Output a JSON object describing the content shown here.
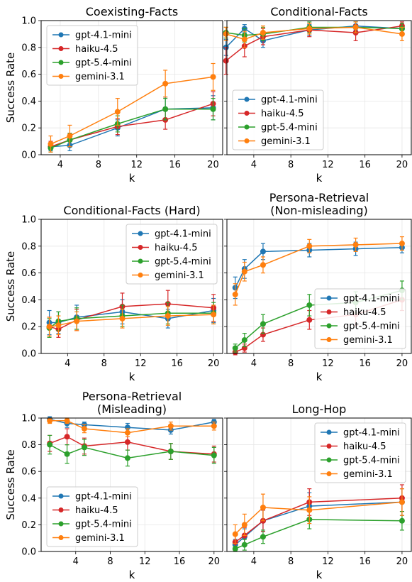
{
  "colors": {
    "gpt-4.1-mini": "#1f77b4",
    "haiku-4.5": "#d62728",
    "gpt-5.4-mini": "#2ca02c",
    "gemini-3.1": "#ff7f0e"
  },
  "chart_data": [
    {
      "type": "line",
      "title": [
        "Coexisting-Facts"
      ],
      "xlabel": "k",
      "ylabel": "Success Rate",
      "xlim": [
        2,
        21
      ],
      "ylim": [
        0,
        1
      ],
      "xticks": [
        4,
        8,
        12,
        16,
        20
      ],
      "yticks": [
        0.0,
        0.2,
        0.4,
        0.6,
        0.8,
        1.0
      ],
      "grid": true,
      "legend": "upper-left",
      "x": [
        3,
        5,
        10,
        15,
        20
      ],
      "series": [
        {
          "name": "gpt-4.1-mini",
          "values": [
            0.06,
            0.07,
            0.2,
            0.34,
            0.35
          ],
          "err": [
            0.03,
            0.04,
            0.06,
            0.09,
            0.09
          ]
        },
        {
          "name": "haiku-4.5",
          "values": [
            0.06,
            0.11,
            0.21,
            0.26,
            0.38
          ],
          "err": [
            0.04,
            0.05,
            0.06,
            0.07,
            0.09
          ]
        },
        {
          "name": "gpt-5.4-mini",
          "values": [
            0.05,
            0.11,
            0.23,
            0.34,
            0.34
          ],
          "err": [
            0.03,
            0.05,
            0.06,
            0.08,
            0.08
          ]
        },
        {
          "name": "gemini-3.1",
          "values": [
            0.08,
            0.14,
            0.32,
            0.53,
            0.58
          ],
          "err": [
            0.06,
            0.08,
            0.1,
            0.1,
            0.1
          ]
        }
      ]
    },
    {
      "type": "line",
      "title": [
        "Conditional-Facts"
      ],
      "xlabel": "k",
      "ylabel": "",
      "xlim": [
        1.1,
        21
      ],
      "ylim": [
        0,
        1
      ],
      "xticks": [
        4,
        8,
        12,
        16,
        20
      ],
      "yticks": [
        0.0,
        0.2,
        0.4,
        0.6,
        0.8,
        1.0
      ],
      "grid": true,
      "legend": "lower-left",
      "x": [
        1,
        3,
        5,
        10,
        15,
        20
      ],
      "series": [
        {
          "name": "gpt-4.1-mini",
          "values": [
            0.8,
            0.94,
            0.85,
            0.93,
            0.96,
            0.94
          ],
          "err": [
            0.06,
            0.03,
            0.05,
            0.04,
            0.03,
            0.03
          ]
        },
        {
          "name": "haiku-4.5",
          "values": [
            0.7,
            0.81,
            0.88,
            0.93,
            0.91,
            0.96
          ],
          "err": [
            0.1,
            0.08,
            0.06,
            0.05,
            0.06,
            0.03
          ]
        },
        {
          "name": "gpt-5.4-mini",
          "values": [
            0.91,
            0.89,
            0.9,
            0.95,
            0.95,
            0.94
          ],
          "err": [
            0.04,
            0.05,
            0.05,
            0.04,
            0.04,
            0.04
          ]
        },
        {
          "name": "gemini-3.1",
          "values": [
            0.9,
            0.86,
            0.91,
            0.94,
            0.95,
            0.9
          ],
          "err": [
            0.05,
            0.06,
            0.05,
            0.04,
            0.04,
            0.05
          ]
        }
      ]
    },
    {
      "type": "line",
      "title": [
        "Conditional-Facts (Hard)"
      ],
      "xlabel": "k",
      "ylabel": "Success Rate",
      "xlim": [
        1.1,
        21
      ],
      "ylim": [
        0,
        1
      ],
      "xticks": [
        4,
        8,
        12,
        16,
        20
      ],
      "yticks": [
        0.0,
        0.2,
        0.4,
        0.6,
        0.8,
        1.0
      ],
      "grid": true,
      "legend": "upper-right",
      "x": [
        2,
        3,
        5,
        10,
        15,
        20
      ],
      "series": [
        {
          "name": "gpt-4.1-mini",
          "values": [
            0.23,
            0.23,
            0.27,
            0.31,
            0.26,
            0.32
          ],
          "err": [
            0.09,
            0.08,
            0.09,
            0.09,
            0.07,
            0.09
          ]
        },
        {
          "name": "haiku-4.5",
          "values": [
            0.2,
            0.18,
            0.25,
            0.35,
            0.37,
            0.34
          ],
          "err": [
            0.07,
            0.06,
            0.08,
            0.1,
            0.1,
            0.1
          ]
        },
        {
          "name": "gpt-5.4-mini",
          "values": [
            0.19,
            0.24,
            0.26,
            0.28,
            0.3,
            0.3
          ],
          "err": [
            0.07,
            0.07,
            0.08,
            0.08,
            0.08,
            0.08
          ]
        },
        {
          "name": "gemini-3.1",
          "values": [
            0.2,
            0.21,
            0.24,
            0.26,
            0.28,
            0.29
          ],
          "err": [
            0.07,
            0.07,
            0.07,
            0.07,
            0.07,
            0.07
          ]
        }
      ]
    },
    {
      "type": "line",
      "title": [
        "Persona-Retrieval",
        "(Non-misleading)"
      ],
      "xlabel": "k",
      "ylabel": "",
      "xlim": [
        1.1,
        21
      ],
      "ylim": [
        0,
        1
      ],
      "xticks": [
        4,
        8,
        12,
        16,
        20
      ],
      "yticks": [
        0.0,
        0.2,
        0.4,
        0.6,
        0.8,
        1.0
      ],
      "grid": true,
      "legend": "lower-right",
      "x": [
        2,
        3,
        5,
        10,
        15,
        20
      ],
      "series": [
        {
          "name": "gpt-4.1-mini",
          "values": [
            0.49,
            0.63,
            0.76,
            0.77,
            0.78,
            0.79
          ],
          "err": [
            0.08,
            0.07,
            0.06,
            0.05,
            0.05,
            0.04
          ]
        },
        {
          "name": "haiku-4.5",
          "values": [
            0.01,
            0.04,
            0.14,
            0.25,
            0.29,
            0.4
          ],
          "err": [
            0.02,
            0.03,
            0.05,
            0.07,
            0.08,
            0.08
          ]
        },
        {
          "name": "gpt-5.4-mini",
          "values": [
            0.04,
            0.1,
            0.22,
            0.36,
            0.38,
            0.47
          ],
          "err": [
            0.03,
            0.05,
            0.07,
            0.08,
            0.08,
            0.07
          ]
        },
        {
          "name": "gemini-3.1",
          "values": [
            0.44,
            0.61,
            0.66,
            0.8,
            0.81,
            0.82
          ],
          "err": [
            0.08,
            0.07,
            0.06,
            0.05,
            0.05,
            0.05
          ]
        }
      ]
    },
    {
      "type": "line",
      "title": [
        "Persona-Retrieval",
        "(Misleading)"
      ],
      "xlabel": "k",
      "ylabel": "Success Rate",
      "xlim": [
        0,
        21
      ],
      "ylim": [
        0,
        1
      ],
      "xticks": [
        4,
        8,
        12,
        16,
        20
      ],
      "yticks": [
        0.0,
        0.2,
        0.4,
        0.6,
        0.8,
        1.0
      ],
      "grid": true,
      "legend": "lower-left",
      "x": [
        1,
        3,
        5,
        10,
        15,
        20
      ],
      "series": [
        {
          "name": "gpt-4.1-mini",
          "values": [
            0.99,
            0.96,
            0.95,
            0.93,
            0.91,
            0.97
          ],
          "err": [
            0.02,
            0.03,
            0.02,
            0.03,
            0.03,
            0.02
          ]
        },
        {
          "name": "haiku-4.5",
          "values": [
            0.81,
            0.86,
            0.79,
            0.82,
            0.75,
            0.73
          ],
          "err": [
            0.06,
            0.06,
            0.06,
            0.06,
            0.06,
            0.06
          ]
        },
        {
          "name": "gpt-5.4-mini",
          "values": [
            0.8,
            0.73,
            0.78,
            0.7,
            0.75,
            0.72
          ],
          "err": [
            0.07,
            0.07,
            0.06,
            0.06,
            0.06,
            0.06
          ]
        },
        {
          "name": "gemini-3.1",
          "values": [
            0.98,
            0.98,
            0.92,
            0.89,
            0.94,
            0.94
          ],
          "err": [
            0.02,
            0.02,
            0.03,
            0.03,
            0.03,
            0.03
          ]
        }
      ]
    },
    {
      "type": "line",
      "title": [
        "Long-Hop"
      ],
      "xlabel": "k",
      "ylabel": "",
      "xlim": [
        1.1,
        21
      ],
      "ylim": [
        0,
        1
      ],
      "xticks": [
        4,
        8,
        12,
        16,
        20
      ],
      "yticks": [
        0.0,
        0.2,
        0.4,
        0.6,
        0.8,
        1.0
      ],
      "grid": true,
      "legend": "upper-right",
      "x": [
        2,
        3,
        5,
        10,
        20
      ],
      "series": [
        {
          "name": "gpt-4.1-mini",
          "values": [
            0.05,
            0.11,
            0.23,
            0.34,
            0.37
          ],
          "err": [
            0.04,
            0.06,
            0.08,
            0.1,
            0.1
          ]
        },
        {
          "name": "haiku-4.5",
          "values": [
            0.07,
            0.12,
            0.23,
            0.37,
            0.4
          ],
          "err": [
            0.05,
            0.06,
            0.08,
            0.1,
            0.1
          ]
        },
        {
          "name": "gpt-5.4-mini",
          "values": [
            0.02,
            0.05,
            0.11,
            0.24,
            0.23
          ],
          "err": [
            0.02,
            0.04,
            0.05,
            0.07,
            0.07
          ]
        },
        {
          "name": "gemini-3.1",
          "values": [
            0.13,
            0.2,
            0.33,
            0.31,
            0.37
          ],
          "err": [
            0.07,
            0.08,
            0.1,
            0.1,
            0.1
          ]
        }
      ]
    }
  ]
}
